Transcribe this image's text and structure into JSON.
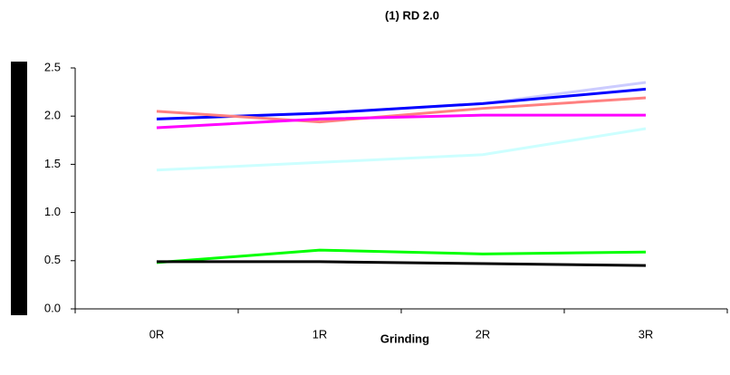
{
  "chart_data": {
    "type": "line",
    "title": "(1) RD 2.0",
    "x_label": "Grinding",
    "categories": [
      "0R",
      "1R",
      "2R",
      "3R"
    ],
    "series": [
      {
        "color": "#ccccff",
        "values": [
          1.97,
          2.03,
          2.13,
          2.35
        ]
      },
      {
        "color": "#0000ff",
        "values": [
          1.97,
          2.03,
          2.13,
          2.28
        ]
      },
      {
        "color": "#ff8080",
        "values": [
          2.05,
          1.94,
          2.08,
          2.19
        ]
      },
      {
        "color": "#ff00ff",
        "values": [
          1.88,
          1.97,
          2.01,
          2.01
        ]
      },
      {
        "color": "#ccffff",
        "values": [
          1.44,
          1.52,
          1.6,
          1.87
        ]
      },
      {
        "color": "#00ff00",
        "values": [
          0.48,
          0.61,
          0.57,
          0.59
        ]
      },
      {
        "color": "#000000",
        "values": [
          0.49,
          0.49,
          0.47,
          0.45
        ]
      }
    ],
    "ylim": [
      0,
      2.5
    ],
    "yticks": [
      {
        "value": 0,
        "label": "0.0"
      },
      0.5,
      {
        "value": 1,
        "label": "1.0"
      },
      1.5,
      {
        "value": 2,
        "label": "2.0"
      },
      2.5
    ],
    "grid": false
  }
}
